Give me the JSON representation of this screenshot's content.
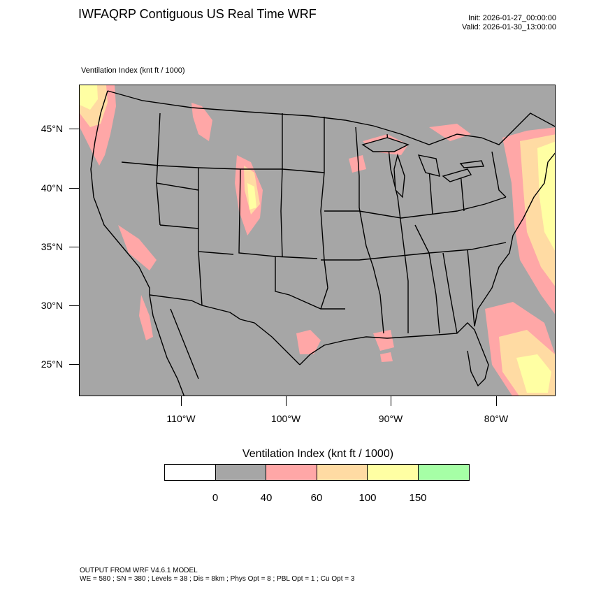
{
  "header": {
    "title": "IWFAQRP Contiguous US Real Time WRF",
    "init": "Init: 2026-01-27_00:00:00",
    "valid": "Valid: 2026-01-30_13:00:00"
  },
  "map": {
    "field_label": "Ventilation Index   (knt ft / 1000)",
    "lat_labels": [
      "45°N",
      "40°N",
      "35°N",
      "30°N",
      "25°N"
    ],
    "lon_labels": [
      "110°W",
      "100°W",
      "90°W",
      "80°W"
    ],
    "colors": {
      "land_background": "#a6a6a6",
      "cat_40_60": "#ffa7a7",
      "cat_60_100": "#ffdba3",
      "cat_100_150": "#ffffa3",
      "boundary": "#000000"
    }
  },
  "legend": {
    "title": "Ventilation Index  (knt ft / 1000)",
    "colors": [
      "#ffffff",
      "#a6a6a6",
      "#ffa7a7",
      "#ffdba3",
      "#ffffa3",
      "#a6ffa6"
    ],
    "values": [
      "0",
      "40",
      "60",
      "100",
      "150"
    ]
  },
  "footer": {
    "line1": "OUTPUT FROM WRF V4.6.1 MODEL",
    "line2": "WE = 580 ; SN = 380 ; Levels = 38 ; Dis = 8km ; Phys Opt = 8 ; PBL Opt = 1 ; Cu Opt = 3"
  }
}
